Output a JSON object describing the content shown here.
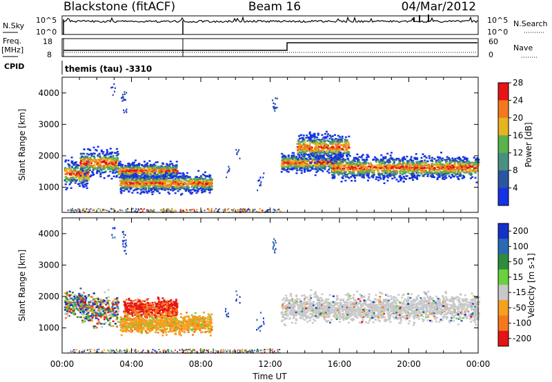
{
  "header": {
    "station": "Blackstone (fitACF)",
    "beam": "Beam 16",
    "date": "04/Mar/2012"
  },
  "aux_panels": {
    "nsky_label": "N.Sky",
    "nsky_ticks": [
      "10^5",
      "10^0"
    ],
    "nsearch_label": "N.Search",
    "nsearch_ticks": [
      "10^5",
      "10^0"
    ],
    "freq_label": "Freq.",
    "freq_unit": "[MHz]",
    "freq_ticks": [
      "18",
      "8"
    ],
    "nave_label": "Nave",
    "nave_ticks": [
      "60",
      "0"
    ],
    "cpid_label": "CPID",
    "cpid_value": "themis (tau) -3310"
  },
  "chart_data": [
    {
      "type": "heatmap",
      "name": "power",
      "ylabel": "Slant Range [km]",
      "yticks": [
        "1000",
        "2000",
        "3000",
        "4000"
      ],
      "ylim": [
        200,
        4500
      ],
      "xlim_hours": [
        0,
        24
      ],
      "colorbar_label": "Power [dB]",
      "colorbar_ticks": [
        "4",
        "8",
        "12",
        "16",
        "20",
        "24",
        "28"
      ],
      "colors": [
        "#1432e6",
        "#2a55a0",
        "#4a9080",
        "#5ab24a",
        "#e6b41e",
        "#f5781e",
        "#e61414"
      ],
      "scatter_bands": [
        {
          "start": 0.1,
          "end": 1.5,
          "center": 1450,
          "width": 500
        },
        {
          "start": 1.0,
          "end": 3.2,
          "center": 1800,
          "width": 500
        },
        {
          "start": 3.2,
          "end": 6.6,
          "center": 1550,
          "width": 300
        },
        {
          "start": 3.3,
          "end": 8.6,
          "center": 1150,
          "width": 350
        },
        {
          "start": 12.6,
          "end": 16.0,
          "center": 1800,
          "width": 350
        },
        {
          "start": 13.5,
          "end": 16.5,
          "center": 2300,
          "width": 500
        },
        {
          "start": 15.5,
          "end": 24.0,
          "center": 1650,
          "width": 450
        }
      ]
    },
    {
      "type": "heatmap",
      "name": "velocity",
      "ylabel": "Slant Range [km]",
      "yticks": [
        "1000",
        "2000",
        "3000",
        "4000"
      ],
      "ylim": [
        200,
        4500
      ],
      "xlim_hours": [
        0,
        24
      ],
      "xticks": [
        "00:00",
        "04:00",
        "08:00",
        "12:00",
        "16:00",
        "20:00",
        "00:00"
      ],
      "xlabel": "Time UT",
      "colorbar_label": "Velocity [m s-1]",
      "colorbar_ticks": [
        "200",
        "100",
        "50",
        "15",
        "-15",
        "-50",
        "-100",
        "-200"
      ],
      "colors": [
        "#1432c8",
        "#2a6ab4",
        "#2e8c3c",
        "#6ad23c",
        "#c8c8c8",
        "#f5a01e",
        "#f5781e",
        "#e61414"
      ],
      "scatter_bands": [
        {
          "start": 0.1,
          "end": 1.2,
          "center": 1800,
          "width": 500
        },
        {
          "start": 1.0,
          "end": 3.2,
          "center": 1600,
          "width": 600
        },
        {
          "start": 3.5,
          "end": 6.6,
          "center": 1650,
          "width": 350
        },
        {
          "start": 3.3,
          "end": 8.6,
          "center": 1150,
          "width": 350
        },
        {
          "start": 12.6,
          "end": 24.0,
          "center": 1650,
          "width": 500
        }
      ]
    }
  ]
}
